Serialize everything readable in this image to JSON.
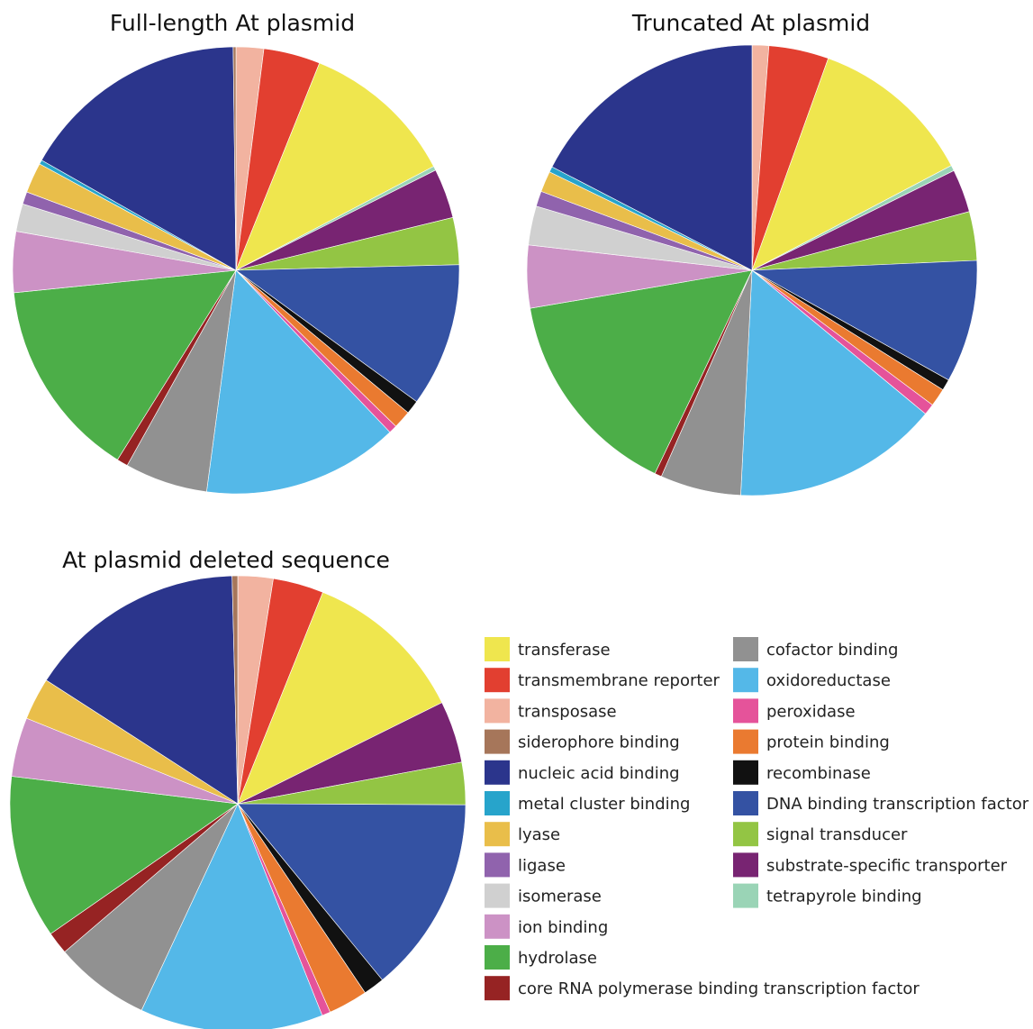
{
  "figure": {
    "categories": [
      "transferase",
      "transmembrane reporter",
      "transposase",
      "siderophore binding",
      "nucleic acid binding",
      "metal cluster binding",
      "lyase",
      "ligase",
      "isomerase",
      "ion binding",
      "hydrolase",
      "core RNA polymerase binding transcription factor",
      "cofactor binding",
      "oxidoreductase",
      "peroxidase",
      "protein binding",
      "recombinase",
      "DNA binding transcription factor",
      "signal transducer",
      "substrate-specific transporter",
      "tetrapyrole binding"
    ],
    "colors": {
      "transferase": "#EFE64E",
      "transmembrane reporter": "#E23F30",
      "transposase": "#F2B3A0",
      "siderophore binding": "#A6765A",
      "nucleic acid binding": "#2B358C",
      "metal cluster binding": "#27A4CB",
      "lyase": "#E9BE4A",
      "ligase": "#9063AD",
      "isomerase": "#D0D0D0",
      "ion binding": "#CC92C5",
      "hydrolase": "#4CAE48",
      "core RNA polymerase binding transcription factor": "#962323",
      "cofactor binding": "#919191",
      "oxidoreductase": "#54B8E8",
      "peroxidase": "#E5539A",
      "protein binding": "#EA7A30",
      "recombinase": "#111111",
      "DNA binding transcription factor": "#3452A3",
      "signal transducer": "#93C544",
      "substrate-specific transporter": "#782472",
      "tetrapyrole binding": "#9AD4B6"
    },
    "legend": {
      "column_1": [
        "transferase",
        "transmembrane reporter",
        "transposase",
        "siderophore binding",
        "nucleic acid binding",
        "metal cluster binding",
        "lyase",
        "ligase",
        "isomerase",
        "ion binding",
        "hydrolase",
        "core RNA polymerase binding transcription factor"
      ],
      "column_2": [
        "cofactor binding",
        "oxidoreductase",
        "peroxidase",
        "protein binding",
        "recombinase",
        "DNA binding transcription factor",
        "signal transducer",
        "substrate-specific transporter",
        "tetrapyrole binding"
      ]
    }
  },
  "chart_data": [
    {
      "type": "pie",
      "title": "Full-length At plasmid",
      "categories": [
        "transposase",
        "transmembrane reporter",
        "transferase",
        "tetrapyrole binding",
        "substrate-specific transporter",
        "signal transducer",
        "DNA binding transcription factor",
        "recombinase",
        "protein binding",
        "peroxidase",
        "oxidoreductase",
        "cofactor binding",
        "core RNA polymerase binding transcription factor",
        "hydrolase",
        "ion binding",
        "isomerase",
        "ligase",
        "lyase",
        "metal cluster binding",
        "nucleic acid binding",
        "siderophore binding"
      ],
      "values": [
        2.0,
        4.1,
        11.2,
        0.3,
        3.6,
        3.4,
        10.4,
        1.0,
        1.3,
        0.6,
        14.2,
        6.0,
        0.8,
        14.5,
        4.4,
        2.0,
        0.9,
        2.2,
        0.3,
        16.6,
        0.2
      ]
    },
    {
      "type": "pie",
      "title": "Truncated At plasmid",
      "categories": [
        "transposase",
        "transmembrane reporter",
        "transferase",
        "tetrapyrole binding",
        "substrate-specific transporter",
        "signal transducer",
        "DNA binding transcription factor",
        "recombinase",
        "protein binding",
        "peroxidase",
        "oxidoreductase",
        "cofactor binding",
        "core RNA polymerase binding transcription factor",
        "hydrolase",
        "ion binding",
        "isomerase",
        "ligase",
        "lyase",
        "metal cluster binding",
        "nucleic acid binding"
      ],
      "values": [
        1.2,
        4.3,
        11.8,
        0.4,
        3.1,
        3.5,
        8.8,
        0.8,
        1.3,
        0.8,
        14.8,
        5.8,
        0.5,
        15.2,
        4.5,
        2.8,
        1.1,
        1.5,
        0.4,
        17.4
      ]
    },
    {
      "type": "pie",
      "title": "At plasmid deleted sequence",
      "categories": [
        "transposase",
        "transmembrane reporter",
        "transferase",
        "substrate-specific transporter",
        "signal transducer",
        "DNA binding transcription factor",
        "recombinase",
        "protein binding",
        "peroxidase",
        "oxidoreductase",
        "cofactor binding",
        "core RNA polymerase binding transcription factor",
        "hydrolase",
        "ion binding",
        "lyase",
        "nucleic acid binding",
        "siderophore binding"
      ],
      "values": [
        2.5,
        3.6,
        11.6,
        4.4,
        3.0,
        14.0,
        1.5,
        2.8,
        0.6,
        13.0,
        6.8,
        1.6,
        11.6,
        4.2,
        3.0,
        15.5,
        0.4
      ]
    }
  ]
}
